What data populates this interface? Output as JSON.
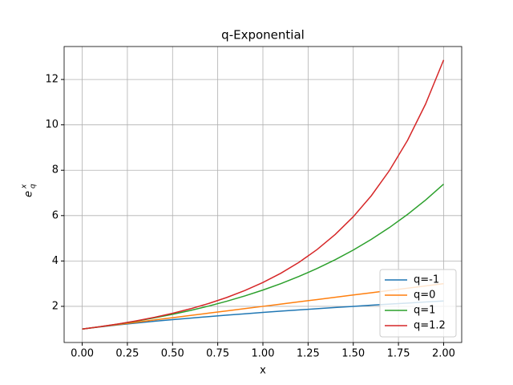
{
  "chart_data": {
    "type": "line",
    "title": "q-Exponential",
    "xlabel": "x",
    "ylabel": {
      "text": "e",
      "superscript": "x",
      "subscript": "q"
    },
    "x": [
      0,
      0.1,
      0.2,
      0.3,
      0.4,
      0.5,
      0.6,
      0.7,
      0.8,
      0.9,
      1.0,
      1.1,
      1.2,
      1.3,
      1.4,
      1.5,
      1.6,
      1.7,
      1.8,
      1.9,
      2.0
    ],
    "series": [
      {
        "name": "q=-1",
        "color": "#1f77b4",
        "values": [
          1,
          1.095,
          1.183,
          1.265,
          1.342,
          1.414,
          1.483,
          1.549,
          1.612,
          1.673,
          1.732,
          1.789,
          1.844,
          1.897,
          1.949,
          2.0,
          2.049,
          2.098,
          2.145,
          2.191,
          2.236
        ]
      },
      {
        "name": "q=0",
        "color": "#ff7f0e",
        "values": [
          1,
          1.1,
          1.2,
          1.3,
          1.4,
          1.5,
          1.6,
          1.7,
          1.8,
          1.9,
          2.0,
          2.1,
          2.2,
          2.3,
          2.4,
          2.5,
          2.6,
          2.7,
          2.8,
          2.9,
          3.0
        ]
      },
      {
        "name": "q=1",
        "color": "#2ca02c",
        "values": [
          1,
          1.105,
          1.221,
          1.35,
          1.492,
          1.649,
          1.822,
          2.014,
          2.226,
          2.46,
          2.718,
          3.004,
          3.32,
          3.669,
          4.055,
          4.482,
          4.953,
          5.474,
          6.05,
          6.686,
          7.389
        ]
      },
      {
        "name": "q=1.2",
        "color": "#d62728",
        "values": [
          1,
          1.106,
          1.226,
          1.363,
          1.517,
          1.694,
          1.895,
          2.126,
          2.391,
          2.697,
          3.052,
          3.464,
          3.943,
          4.506,
          5.168,
          5.95,
          6.877,
          7.986,
          9.313,
          10.916,
          12.86
        ]
      }
    ],
    "xlim": [
      -0.1,
      2.1
    ],
    "xticks": [
      {
        "value": 0,
        "label": "0.00"
      },
      {
        "value": 0.25,
        "label": "0.25"
      },
      {
        "value": 0.5,
        "label": "0.50"
      },
      {
        "value": 0.75,
        "label": "0.75"
      },
      {
        "value": 1,
        "label": "1.00"
      },
      {
        "value": 1.25,
        "label": "1.25"
      },
      {
        "value": 1.5,
        "label": "1.50"
      },
      {
        "value": 1.75,
        "label": "1.75"
      },
      {
        "value": 2,
        "label": "2.00"
      }
    ],
    "ylim": [
      0.407,
      13.453
    ],
    "yticks": [
      2,
      4,
      6,
      8,
      10,
      12
    ],
    "grid": true,
    "legend": "lower right"
  }
}
